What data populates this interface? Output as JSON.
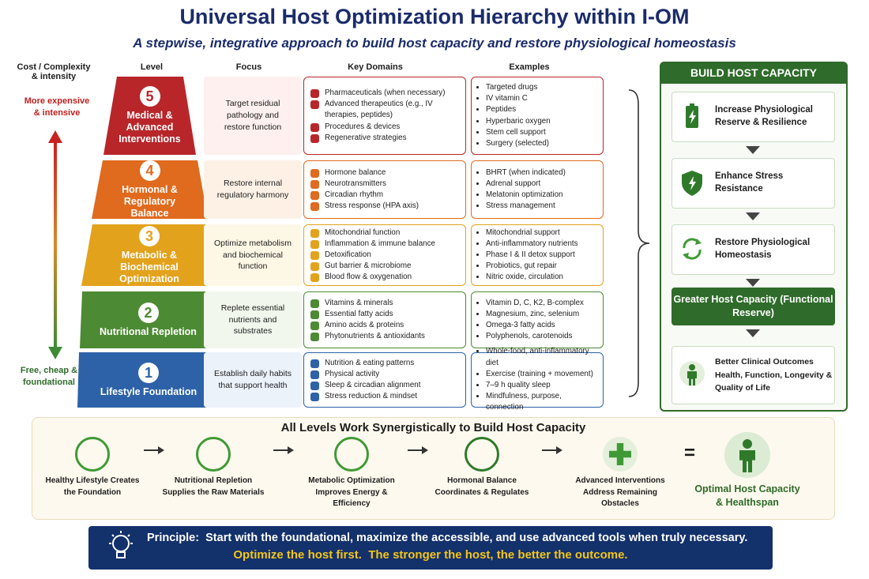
{
  "header": {
    "title": "Universal Host Optimization Hierarchy within I-OM",
    "subtitle": "A stepwise, integrative approach to build host capacity and restore physiological homeostasis"
  },
  "columns": {
    "cost": "Cost / Complexity & intensity",
    "level": "Level",
    "focus": "Focus",
    "domains": "Key Domains",
    "examples": "Examples"
  },
  "axis": {
    "top": "More expensive & intensive",
    "bottom": "Free, cheap & foundational"
  },
  "levels": [
    {
      "number": "5",
      "name": "Medical & Advanced Interventions",
      "focus": "Target residual pathology and restore function",
      "domains": [
        "Pharmaceuticals (when necessary)",
        "Advanced therapeutics (e.g., IV therapies, peptides)",
        "Procedures & devices",
        "Regenerative strategies"
      ],
      "examples": [
        "Targeted drugs",
        "IV vitamin C",
        "Peptides",
        "Hyperbaric oxygen",
        "Stem cell support",
        "Surgery (selected)"
      ]
    },
    {
      "number": "4",
      "name": "Hormonal & Regulatory Balance",
      "focus": "Restore internal regulatory harmony",
      "domains": [
        "Hormone balance",
        "Neurotransmitters",
        "Circadian rhythm",
        "Stress response (HPA axis)"
      ],
      "examples": [
        "BHRT (when indicated)",
        "Adrenal support",
        "Melatonin optimization",
        "Stress management"
      ]
    },
    {
      "number": "3",
      "name": "Metabolic & Biochemical Optimization",
      "focus": "Optimize metabolism and biochemical function",
      "domains": [
        "Mitochondrial function",
        "Inflammation & immune balance",
        "Detoxification",
        "Gut barrier & microbiome",
        "Blood flow & oxygenation"
      ],
      "examples": [
        "Mitochondrial support",
        "Anti-inflammatory nutrients",
        "Phase I & II detox support",
        "Probiotics, gut repair",
        "Nitric oxide, circulation"
      ]
    },
    {
      "number": "2",
      "name": "Nutritional Repletion",
      "focus": "Replete essential nutrients and substrates",
      "domains": [
        "Vitamins & minerals",
        "Essential fatty acids",
        "Amino acids & proteins",
        "Phytonutrients & antioxidants"
      ],
      "examples": [
        "Vitamin D, C, K2, B-complex",
        "Magnesium, zinc, selenium",
        "Omega-3 fatty acids",
        "Polyphenols, carotenoids"
      ]
    },
    {
      "number": "1",
      "name": "Lifestyle Foundation",
      "focus": "Establish daily habits that support health",
      "domains": [
        "Nutrition & eating patterns",
        "Physical activity",
        "Sleep & circadian alignment",
        "Stress reduction & mindset"
      ],
      "examples": [
        "Whole-food, anti-inflammatory diet",
        "Exercise (training + movement)",
        "7–9 h quality sleep",
        "Mindfulness, purpose, connection"
      ]
    }
  ],
  "capacity": {
    "title": "BUILD HOST CAPACITY",
    "steps": [
      "Increase Physiological Reserve & Resilience",
      "Enhance Stress Resistance",
      "Restore Physiological Homeostasis",
      "Greater Host Capacity (Functional Reserve)",
      "Better Clinical Outcomes Health, Function, Longevity & Quality of Life"
    ]
  },
  "synergy": {
    "title": "All Levels Work Synergistically to Build Host Capacity",
    "items": [
      "Healthy Lifestyle Creates the Foundation",
      "Nutritional Repletion Supplies the Raw Materials",
      "Metabolic Optimization Improves Energy & Efficiency",
      "Hormonal Balance Coordinates & Regulates",
      "Advanced Interventions Address Remaining Obstacles"
    ],
    "equals": "=",
    "result": "Optimal Host Capacity & Healthspan"
  },
  "principle": {
    "label": "Principle:",
    "text": "Start with the foundational, maximize the accessible, and use advanced tools when truly necessary.",
    "tagline": "Optimize the host first.  The stronger the host, the better the outcome."
  }
}
